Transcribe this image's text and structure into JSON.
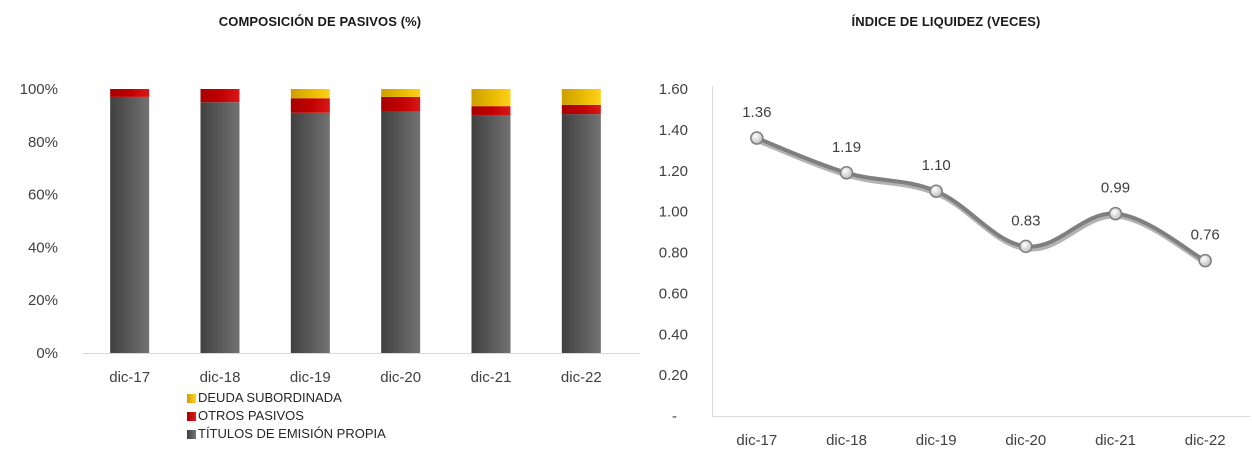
{
  "charts": {
    "left_title": "COMPOSICIÓN DE PASIVOS (%)",
    "right_title": "ÍNDICE DE LIQUIDEZ (VECES)"
  },
  "chart_data": [
    {
      "type": "bar",
      "stacked": true,
      "title": "COMPOSICIÓN DE PASIVOS (%)",
      "categories": [
        "dic-17",
        "dic-18",
        "dic-19",
        "dic-20",
        "dic-21",
        "dic-22"
      ],
      "ylim": [
        0,
        100
      ],
      "y_ticks": [
        "0%",
        "20%",
        "40%",
        "60%",
        "80%",
        "100%"
      ],
      "series": [
        {
          "name": "TÍTULOS DE EMISIÓN PROPIA",
          "color": "#595959",
          "values": [
            97,
            95,
            91,
            91.5,
            90,
            90.5
          ]
        },
        {
          "name": "OTROS PASIVOS",
          "color": "#c00000",
          "values": [
            3,
            5,
            5.5,
            5.5,
            3.5,
            3.5
          ]
        },
        {
          "name": "DEUDA SUBORDINADA",
          "color": "#e6b800",
          "values": [
            0,
            0,
            3.5,
            3,
            6.5,
            6
          ]
        }
      ],
      "legend": [
        "DEUDA SUBORDINADA",
        "OTROS PASIVOS",
        "TÍTULOS DE EMISIÓN PROPIA"
      ],
      "legend_position": "bottom-left",
      "grid": false
    },
    {
      "type": "line",
      "title": "ÍNDICE DE LIQUIDEZ (VECES)",
      "categories": [
        "dic-17",
        "dic-18",
        "dic-19",
        "dic-20",
        "dic-21",
        "dic-22"
      ],
      "values": [
        1.36,
        1.19,
        1.1,
        0.83,
        0.99,
        0.76
      ],
      "data_labels": [
        "1.36",
        "1.19",
        "1.10",
        "0.83",
        "0.99",
        "0.76"
      ],
      "ylim": [
        0,
        1.6
      ],
      "y_ticks": [
        "-",
        "0.20",
        "0.40",
        "0.60",
        "0.80",
        "1.00",
        "1.20",
        "1.40",
        "1.60"
      ],
      "color": "#7f7f7f",
      "smooth": true,
      "grid": false
    }
  ]
}
